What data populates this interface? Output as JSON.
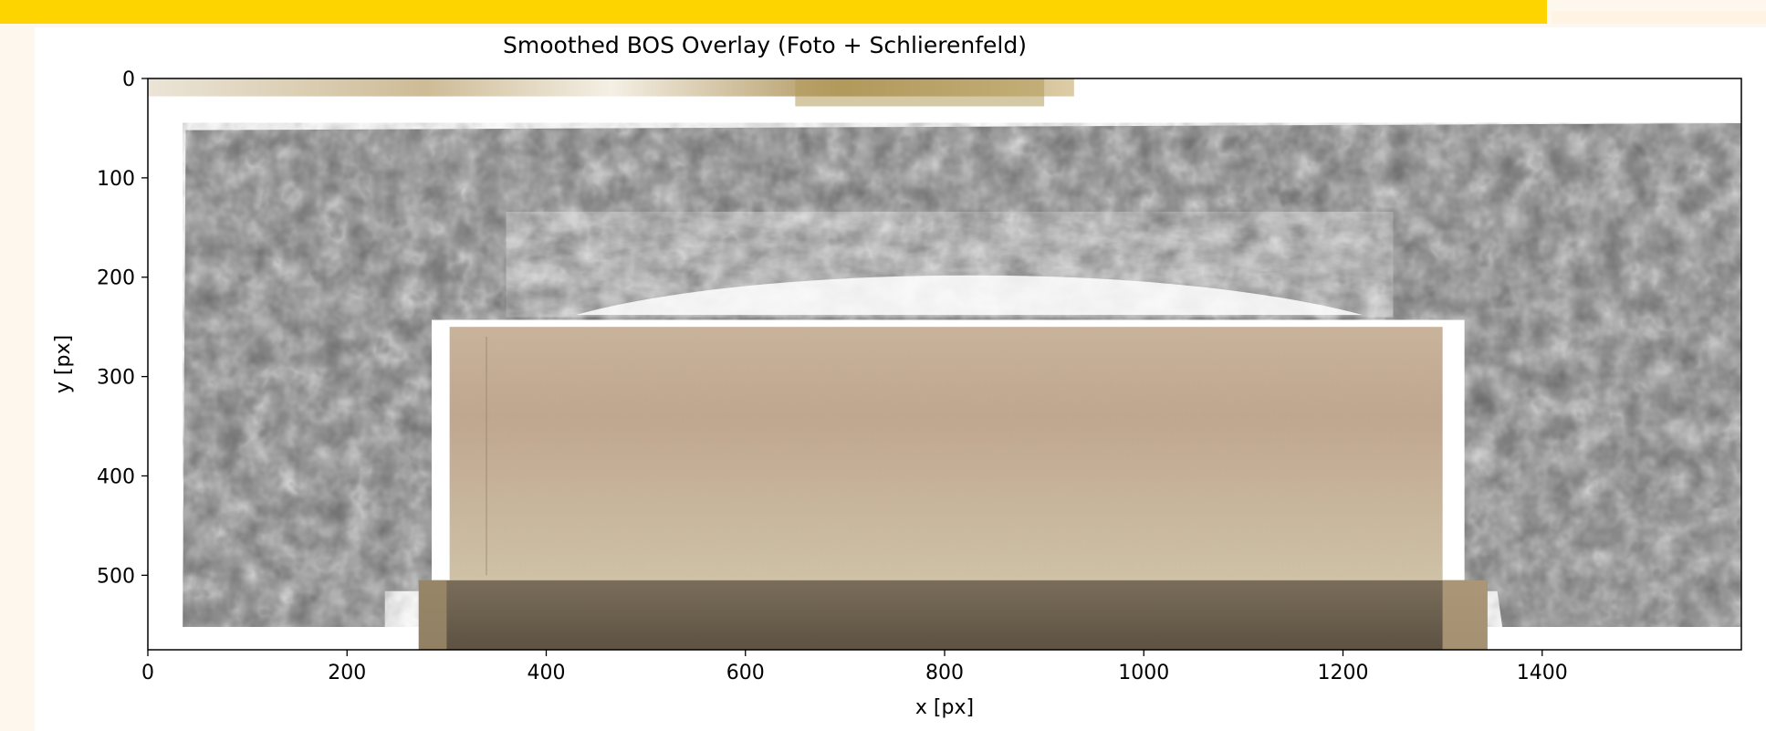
{
  "banner": {
    "text": ""
  },
  "colors": {
    "banner_bg": "#fdd400",
    "banner_text": "#a00000",
    "page_bg": "#fef7ee",
    "schlieren_dark": "#4a4a4a",
    "schlieren_light": "#bdbdbd",
    "block_face": "#cfc1a3",
    "block_top": "#b7a587",
    "base_plate": "#6d6150"
  },
  "chart_data": {
    "type": "image",
    "title": "Smoothed BOS Overlay (Foto + Schlierenfeld)",
    "xlabel": "x [px]",
    "ylabel": "y [px]",
    "xlim": [
      0,
      1600
    ],
    "ylim": [
      575,
      0
    ],
    "xticks": [
      0,
      200,
      400,
      600,
      800,
      1000,
      1200,
      1400
    ],
    "yticks": [
      0,
      100,
      200,
      300,
      400,
      500
    ],
    "grid": false,
    "legend": "none",
    "layers": [
      "Foto",
      "Schlierenfeld"
    ]
  }
}
